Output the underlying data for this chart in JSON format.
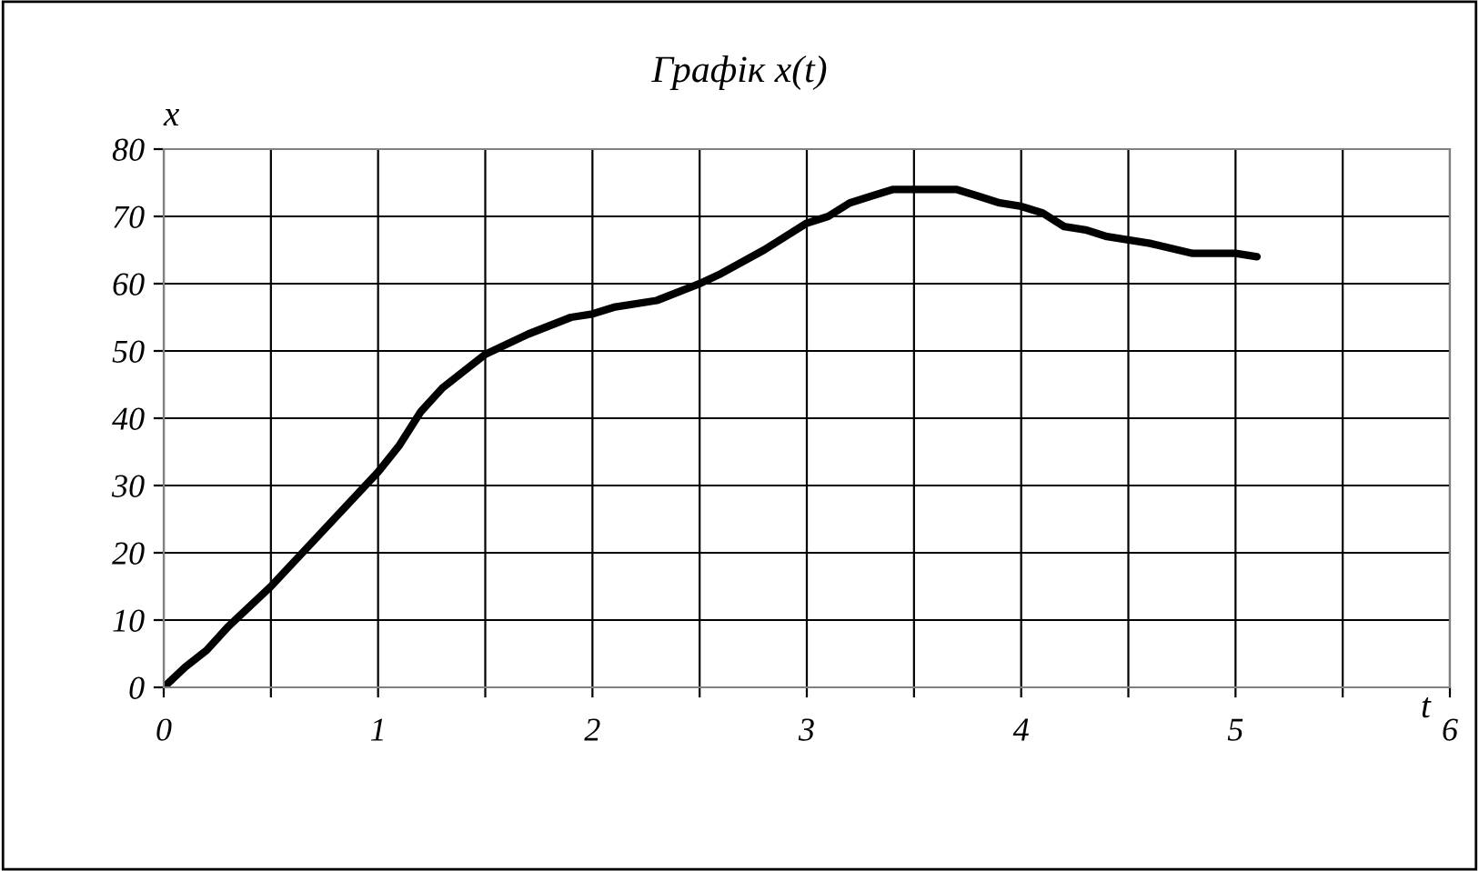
{
  "chart_data": {
    "type": "line",
    "title": "Графік x(t)",
    "xlabel": "t",
    "ylabel": "x",
    "x": [
      0,
      0.1,
      0.2,
      0.3,
      0.5,
      1.0,
      1.1,
      1.2,
      1.3,
      1.4,
      1.5,
      1.7,
      1.9,
      2.0,
      2.1,
      2.3,
      2.5,
      2.6,
      2.8,
      3.0,
      3.1,
      3.2,
      3.3,
      3.4,
      3.5,
      3.6,
      3.7,
      3.8,
      3.9,
      4.0,
      4.1,
      4.2,
      4.3,
      4.4,
      4.6,
      4.8,
      5.0,
      5.1
    ],
    "series": [
      {
        "color": "#000000",
        "values": [
          0,
          3,
          5.5,
          9,
          15,
          32,
          36,
          41,
          44.5,
          47,
          49.5,
          52.5,
          55,
          55.5,
          56.5,
          57.5,
          60,
          61.5,
          65,
          69,
          70,
          72,
          73,
          74,
          74,
          74,
          74,
          73,
          72,
          71.5,
          70.5,
          68.5,
          68,
          67,
          66,
          64.5,
          64.5,
          64
        ]
      }
    ],
    "xlim": [
      0,
      6
    ],
    "ylim": [
      0,
      80
    ],
    "xticks": [
      0,
      {
        "value": 0.5,
        "label": null
      },
      1,
      {
        "value": 1.5,
        "label": null
      },
      2,
      {
        "value": 2.5,
        "label": null
      },
      3,
      {
        "value": 3.5,
        "label": null
      },
      4,
      {
        "value": 4.5,
        "label": null
      },
      5,
      {
        "value": 5.5,
        "label": null
      },
      6
    ],
    "yticks": [
      0,
      10,
      20,
      30,
      40,
      50,
      60,
      70,
      80
    ],
    "grid": true,
    "line_style": "solid",
    "marker": "none",
    "legend": false
  }
}
